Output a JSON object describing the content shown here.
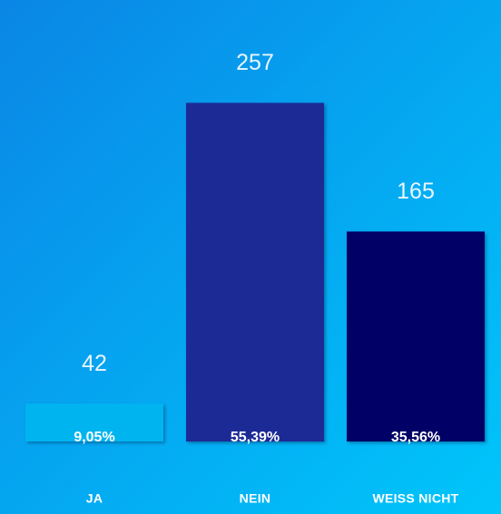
{
  "chart_data": {
    "type": "bar",
    "categories": [
      "JA",
      "NEIN",
      "WEISS NICHT"
    ],
    "values": [
      42,
      257,
      165
    ],
    "colors": [
      "#00b4f0",
      "#1a2a96",
      "#000066"
    ],
    "shares": [
      9.05,
      55.39,
      35.56
    ],
    "share_labels": [
      "9,05%",
      "55,39%",
      "35,56%"
    ]
  }
}
